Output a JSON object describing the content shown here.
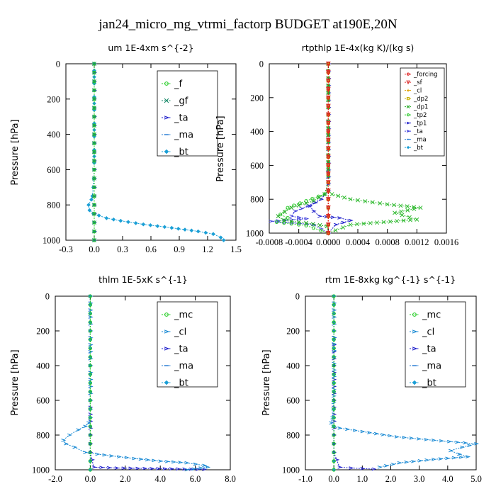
{
  "figure_title": "jan24_micro_mg_vtrmi_factorp  BUDGET at190E,20N",
  "chart_data": [
    {
      "type": "line",
      "title": "um   1E-4xm s^{-2}",
      "ylabel": "Pressure [hPa]",
      "xlim": [
        -0.3,
        1.5
      ],
      "ylim": [
        1000,
        0
      ],
      "xticks": [
        "-0.3",
        "0.0",
        "0.3",
        "0.6",
        "0.9",
        "1.2",
        "1.5"
      ],
      "xtick_values": [
        -0.3,
        0.0,
        0.3,
        0.6,
        0.9,
        1.2,
        1.5
      ],
      "yticks": [
        "0",
        "200",
        "400",
        "600",
        "800",
        "1000"
      ],
      "ytick_values": [
        0,
        200,
        400,
        600,
        800,
        1000
      ],
      "legend_position": "top-right",
      "series": [
        {
          "name": "_f",
          "color": "#22cc22",
          "marker": "circle",
          "x": [
            0,
            0,
            0,
            0,
            0,
            0,
            0,
            0,
            0,
            0,
            0
          ],
          "y": [
            0,
            100,
            200,
            300,
            400,
            500,
            600,
            700,
            800,
            900,
            1000
          ]
        },
        {
          "name": "_gf",
          "color": "#1a8a6a",
          "marker": "x",
          "x": [
            0,
            0,
            0,
            0,
            0,
            0,
            0,
            0,
            0,
            0,
            0
          ],
          "y": [
            0,
            100,
            200,
            300,
            400,
            500,
            600,
            700,
            800,
            900,
            1000
          ]
        },
        {
          "name": "_ta",
          "color": "#2222cc",
          "marker": "arrow",
          "x": [
            0,
            0,
            0,
            0,
            0,
            0,
            0,
            0,
            0,
            0,
            0
          ],
          "y": [
            0,
            100,
            200,
            300,
            400,
            500,
            600,
            700,
            800,
            900,
            1000
          ]
        },
        {
          "name": "_ma",
          "color": "#2a7fd4",
          "marker": "dash",
          "x": [
            0,
            0,
            0,
            0,
            0,
            0,
            0,
            0,
            0,
            0,
            0
          ],
          "y": [
            0,
            100,
            200,
            300,
            400,
            500,
            600,
            700,
            800,
            900,
            1000
          ]
        },
        {
          "name": "_bt",
          "color": "#1a9fd6",
          "marker": "diamond",
          "x": [
            0,
            0,
            0,
            0,
            0,
            -0.01,
            -0.02,
            -0.03,
            -0.06,
            -0.05,
            -0.01,
            0.05,
            0.13,
            0.28,
            0.52,
            0.82,
            1.1,
            1.26,
            1.34,
            1.37
          ],
          "y": [
            0,
            150,
            300,
            450,
            600,
            700,
            750,
            770,
            800,
            830,
            850,
            860,
            875,
            890,
            910,
            930,
            950,
            965,
            985,
            1000
          ]
        }
      ]
    },
    {
      "type": "line",
      "title": "rtpthlp   1E-4x(kg K)/(kg s)",
      "ylabel": "Pressure [hPa]",
      "xlim": [
        -0.0008,
        0.0016
      ],
      "ylim": [
        1000,
        0
      ],
      "xticks": [
        "-0.0008",
        "-0.0004",
        "0.0000",
        "0.0004",
        "0.0008",
        "0.0012",
        "0.0016"
      ],
      "xtick_values": [
        -0.0008,
        -0.0004,
        0.0,
        0.0004,
        0.0008,
        0.0012,
        0.0016
      ],
      "yticks": [
        "0",
        "200",
        "400",
        "600",
        "800",
        "1000"
      ],
      "ytick_values": [
        0,
        200,
        400,
        600,
        800,
        1000
      ],
      "legend_position": "top-right",
      "series": [
        {
          "name": "_forcing",
          "color": "#e02020",
          "marker": "circle",
          "x": [
            0,
            0,
            0,
            0,
            0,
            0,
            0,
            0,
            0,
            0,
            0
          ],
          "y": [
            0,
            100,
            200,
            300,
            400,
            500,
            600,
            700,
            800,
            900,
            1000
          ]
        },
        {
          "name": "_sf",
          "color": "#dd3333",
          "marker": "triangle",
          "x": [
            0,
            0,
            0,
            0,
            0,
            0,
            0,
            0,
            0,
            0,
            0
          ],
          "y": [
            0,
            100,
            200,
            300,
            400,
            500,
            600,
            700,
            800,
            900,
            1000
          ]
        },
        {
          "name": "_cl",
          "color": "#e0a000",
          "marker": "plus",
          "x": [
            0,
            0,
            0,
            0,
            0,
            0,
            0,
            0,
            0,
            0,
            0
          ],
          "y": [
            0,
            100,
            200,
            300,
            400,
            500,
            600,
            700,
            800,
            900,
            1000
          ]
        },
        {
          "name": "_dp2",
          "color": "#c8b000",
          "marker": "square",
          "x": [
            0,
            0,
            0,
            0,
            0,
            0,
            0,
            0,
            0,
            0,
            0
          ],
          "y": [
            0,
            100,
            200,
            300,
            400,
            500,
            600,
            700,
            800,
            900,
            1000
          ]
        },
        {
          "name": "_dp1",
          "color": "#22aa22",
          "marker": "x",
          "x": [
            0,
            0,
            0,
            -5e-05,
            -0.0002,
            -0.0005,
            -0.00068,
            -0.0006,
            -0.0003,
            -2e-05,
            0
          ],
          "y": [
            0,
            300,
            700,
            770,
            810,
            850,
            900,
            925,
            940,
            960,
            1000
          ]
        },
        {
          "name": "_tp2",
          "color": "#33cc33",
          "marker": "circle",
          "x": [
            0,
            0,
            0,
            -5e-05,
            -0.0003,
            -0.00055,
            -0.00065,
            -0.00055,
            -0.0007,
            -0.0003,
            0
          ],
          "y": [
            0,
            300,
            700,
            770,
            810,
            850,
            890,
            910,
            935,
            955,
            1000
          ]
        },
        {
          "name": "_tp1",
          "color": "#2222cc",
          "marker": "arrow",
          "x": [
            0,
            0,
            0,
            -0.0001,
            -0.00025,
            -0.0002,
            -0.00012,
            0.00015,
            0.0003,
            0.0001,
            0
          ],
          "y": [
            0,
            300,
            750,
            800,
            840,
            870,
            900,
            910,
            925,
            950,
            1000
          ]
        },
        {
          "name": "_ta",
          "color": "#4444dd",
          "marker": "arrow",
          "x": [
            0,
            0,
            0,
            -0.0001,
            -0.00028,
            -0.00045,
            -0.0005,
            -0.0003,
            -0.00078,
            -0.0002,
            0
          ],
          "y": [
            0,
            300,
            750,
            800,
            840,
            870,
            900,
            915,
            930,
            950,
            1000
          ]
        },
        {
          "name": "_ma",
          "color": "#2a7fd4",
          "marker": "dash",
          "x": [
            0,
            0,
            0,
            0,
            0,
            0,
            0,
            0,
            0,
            0,
            0
          ],
          "y": [
            0,
            100,
            200,
            300,
            400,
            500,
            600,
            700,
            800,
            900,
            1000
          ]
        },
        {
          "name": "_bt",
          "color": "#1a9fd6",
          "marker": "diamond",
          "x": [
            0,
            0,
            0,
            0,
            0,
            0,
            0,
            0,
            0,
            0,
            0
          ],
          "y": [
            0,
            100,
            200,
            300,
            400,
            500,
            600,
            700,
            800,
            900,
            1000
          ]
        },
        {
          "name": "",
          "color": "#33bb33",
          "marker": "x",
          "x": [
            0,
            0,
            0,
            5e-05,
            0.0003,
            0.0008,
            0.00125,
            0.0009,
            0.0012,
            0.0003,
            0
          ],
          "y": [
            0,
            300,
            750,
            770,
            800,
            830,
            850,
            880,
            920,
            950,
            1000
          ]
        }
      ]
    },
    {
      "type": "line",
      "title": "thlm   1E-5xK s^{-1}",
      "ylabel": "Pressure [hPa]",
      "xlim": [
        -2.0,
        8.0
      ],
      "ylim": [
        1000,
        0
      ],
      "xticks": [
        "-2.0",
        "0.0",
        "2.0",
        "4.0",
        "6.0",
        "8.0"
      ],
      "xtick_values": [
        -2.0,
        0.0,
        2.0,
        4.0,
        6.0,
        8.0
      ],
      "yticks": [
        "0",
        "200",
        "400",
        "600",
        "800",
        "1000"
      ],
      "ytick_values": [
        0,
        200,
        400,
        600,
        800,
        1000
      ],
      "legend_position": "top-right",
      "series": [
        {
          "name": "_mc",
          "color": "#22cc22",
          "marker": "circle",
          "x": [
            0,
            0,
            0,
            0,
            0,
            0,
            0,
            0,
            0,
            0,
            0
          ],
          "y": [
            0,
            100,
            200,
            300,
            400,
            500,
            600,
            700,
            800,
            900,
            1000
          ]
        },
        {
          "name": "_cl",
          "color": "#1a8ad4",
          "marker": "arrow",
          "x": [
            0,
            0,
            0,
            0,
            0,
            -0.1,
            -0.3,
            -0.7,
            -1.2,
            -1.55,
            -1.4,
            -0.9,
            -0.3,
            0.4,
            1.2,
            2.5,
            4.0,
            5.5,
            6.5,
            6.7,
            5.5
          ],
          "y": [
            0,
            200,
            400,
            600,
            700,
            730,
            750,
            770,
            800,
            830,
            850,
            870,
            900,
            910,
            920,
            935,
            950,
            960,
            975,
            985,
            1000
          ]
        },
        {
          "name": "_ta",
          "color": "#2222cc",
          "marker": "arrow",
          "x": [
            0,
            0,
            0,
            0,
            0,
            0,
            0.2,
            1.5,
            3.5,
            5.0,
            6.5
          ],
          "y": [
            0,
            200,
            400,
            600,
            800,
            900,
            985,
            990,
            993,
            995,
            998
          ]
        },
        {
          "name": "_ma",
          "color": "#2a7fd4",
          "marker": "dash",
          "x": [
            0,
            0,
            0,
            0,
            0,
            0,
            0,
            0,
            0,
            0,
            0
          ],
          "y": [
            0,
            100,
            200,
            300,
            400,
            500,
            600,
            700,
            800,
            900,
            1000
          ]
        },
        {
          "name": "_bt",
          "color": "#1a9fd6",
          "marker": "diamond",
          "x": [
            0,
            0,
            0,
            0,
            0,
            0,
            0,
            0,
            0,
            0,
            0
          ],
          "y": [
            0,
            100,
            200,
            300,
            400,
            500,
            600,
            700,
            800,
            900,
            1000
          ]
        }
      ]
    },
    {
      "type": "line",
      "title": "rtm   1E-8xkg kg^{-1} s^{-1}",
      "ylabel": "Pressure [hPa]",
      "xlim": [
        -1.0,
        5.0
      ],
      "ylim": [
        1000,
        0
      ],
      "xticks": [
        "-1.0",
        "0.0",
        "1.0",
        "2.0",
        "3.0",
        "4.0",
        "5.0"
      ],
      "xtick_values": [
        -1.0,
        0.0,
        1.0,
        2.0,
        3.0,
        4.0,
        5.0
      ],
      "yticks": [
        "0",
        "200",
        "400",
        "600",
        "800",
        "1000"
      ],
      "ytick_values": [
        0,
        200,
        400,
        600,
        800,
        1000
      ],
      "legend_position": "top-right",
      "series": [
        {
          "name": "_mc",
          "color": "#22cc22",
          "marker": "circle",
          "x": [
            0,
            0,
            0,
            0,
            0,
            0,
            0,
            0,
            0,
            0,
            0
          ],
          "y": [
            0,
            100,
            200,
            300,
            400,
            500,
            600,
            700,
            800,
            900,
            1000
          ]
        },
        {
          "name": "_cl",
          "color": "#1a8ad4",
          "marker": "arrow",
          "x": [
            0,
            0,
            0,
            -0.02,
            -0.05,
            -0.1,
            -0.02,
            0.2,
            1.0,
            2.2,
            3.5,
            4.6,
            5.0,
            4.5,
            4.1,
            4.4,
            4.7,
            3.5,
            2.3,
            1.6
          ],
          "y": [
            0,
            200,
            500,
            650,
            700,
            730,
            750,
            760,
            780,
            810,
            830,
            845,
            850,
            870,
            890,
            910,
            925,
            940,
            960,
            985
          ]
        },
        {
          "name": "_ta",
          "color": "#2222cc",
          "marker": "arrow",
          "x": [
            0,
            0,
            0,
            0,
            0,
            0,
            0.2,
            0.6,
            1.0,
            1.4
          ],
          "y": [
            0,
            200,
            400,
            600,
            800,
            900,
            985,
            990,
            993,
            996
          ]
        },
        {
          "name": "_ma",
          "color": "#2a7fd4",
          "marker": "dash",
          "x": [
            0,
            0,
            0,
            0,
            0,
            0,
            0,
            0,
            0,
            0,
            0
          ],
          "y": [
            0,
            100,
            200,
            300,
            400,
            500,
            600,
            700,
            800,
            900,
            1000
          ]
        },
        {
          "name": "_bt",
          "color": "#1a9fd6",
          "marker": "diamond",
          "x": [
            0,
            0,
            0,
            0,
            0,
            0,
            0,
            0,
            0,
            0,
            0
          ],
          "y": [
            0,
            100,
            200,
            300,
            400,
            500,
            600,
            700,
            800,
            900,
            1000
          ]
        }
      ]
    }
  ]
}
